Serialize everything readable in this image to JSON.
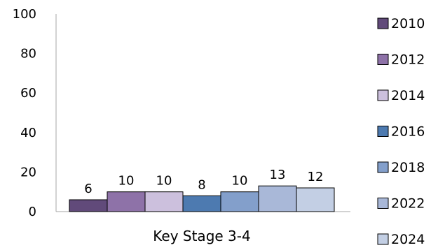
{
  "chart_data": {
    "type": "bar",
    "categories": [
      "Key Stage 3-4"
    ],
    "series": [
      {
        "name": "2010",
        "values": [
          6
        ],
        "color": "#614a7a"
      },
      {
        "name": "2012",
        "values": [
          10
        ],
        "color": "#8e72a8"
      },
      {
        "name": "2014",
        "values": [
          10
        ],
        "color": "#ccc0dd"
      },
      {
        "name": "2016",
        "values": [
          8
        ],
        "color": "#4d7ab0"
      },
      {
        "name": "2018",
        "values": [
          10
        ],
        "color": "#839fcb"
      },
      {
        "name": "2022",
        "values": [
          13
        ],
        "color": "#a9b8d8"
      },
      {
        "name": "2024",
        "values": [
          12
        ],
        "color": "#c3cfe4"
      }
    ],
    "data_labels": [
      "6",
      "10",
      "10",
      "8",
      "10",
      "13",
      "12"
    ],
    "ylim": [
      0,
      100
    ],
    "yticks": [
      "0",
      "20",
      "40",
      "60",
      "80",
      "100"
    ],
    "grid": false,
    "legend": "right"
  }
}
